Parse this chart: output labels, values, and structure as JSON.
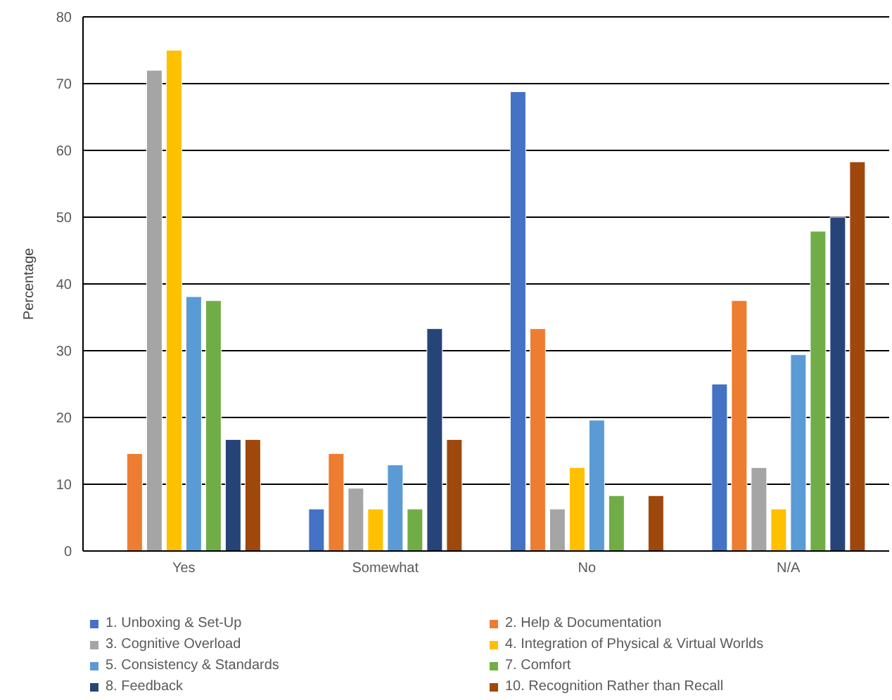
{
  "chart_data": {
    "type": "bar",
    "ylabel": "Percentage",
    "categories": [
      "Yes",
      "Somewhat",
      "No",
      "N/A"
    ],
    "series": [
      {
        "name": "1. Unboxing & Set-Up",
        "color": "#4472c4",
        "values": [
          0,
          6.3,
          68.8,
          25
        ]
      },
      {
        "name": "2. Help & Documentation",
        "color": "#ed7d31",
        "values": [
          14.6,
          14.6,
          33.3,
          37.5
        ]
      },
      {
        "name": "3. Cognitive Overload",
        "color": "#a5a5a5",
        "values": [
          72,
          9.4,
          6.3,
          12.5
        ]
      },
      {
        "name": "4. Integration of Physical & Virtual Worlds",
        "color": "#ffc000",
        "values": [
          75,
          6.3,
          12.5,
          6.3
        ]
      },
      {
        "name": "5. Consistency & Standards",
        "color": "#5b9bd5",
        "values": [
          38.1,
          12.9,
          19.6,
          29.4
        ]
      },
      {
        "name": "7. Comfort",
        "color": "#70ad47",
        "values": [
          37.5,
          6.3,
          8.3,
          47.9
        ]
      },
      {
        "name": "8. Feedback",
        "color": "#264478",
        "values": [
          16.7,
          33.3,
          0,
          50
        ]
      },
      {
        "name": "10. Recognition Rather than Recall",
        "color": "#9e480e",
        "values": [
          16.7,
          16.7,
          8.3,
          58.3
        ]
      }
    ],
    "ylim": [
      0,
      80
    ],
    "yticks": [
      0,
      10,
      20,
      30,
      40,
      50,
      60,
      70,
      80
    ],
    "grid": "y",
    "legend": "bottom"
  }
}
